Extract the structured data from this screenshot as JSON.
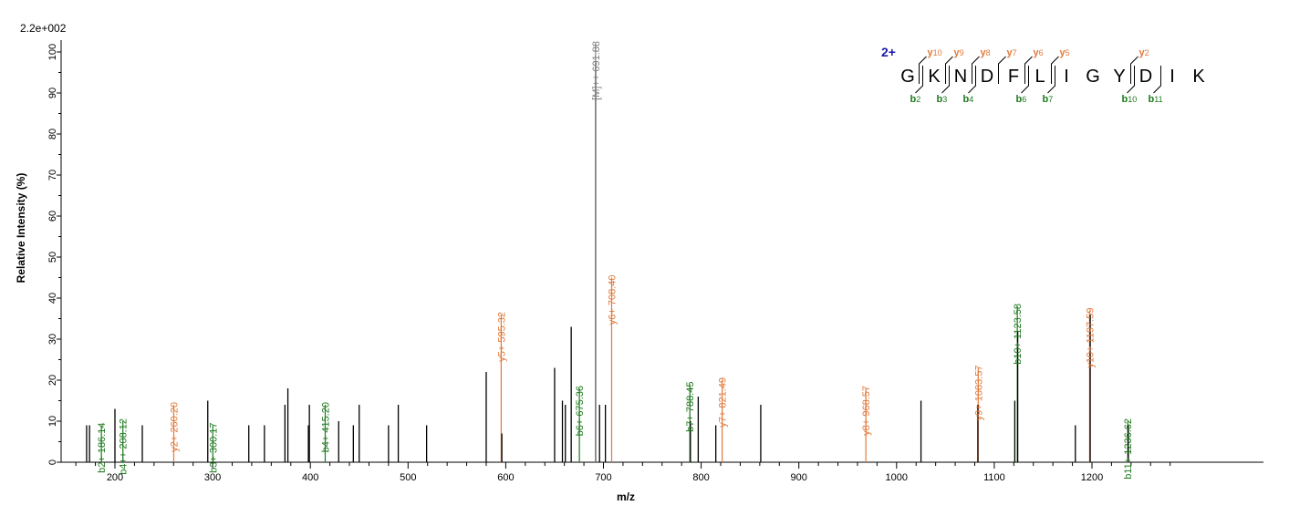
{
  "chart_data": {
    "type": "bar",
    "scale_label": "2.2e+002",
    "xlabel": "m/z",
    "ylabel": "Relative   Intensity (%)",
    "xlim": [
      155,
      1285
    ],
    "ylim": [
      0,
      101
    ],
    "xticks": [
      200,
      300,
      400,
      500,
      600,
      700,
      800,
      900,
      1000,
      1100,
      1200
    ],
    "yticks": [
      0,
      10,
      20,
      30,
      40,
      50,
      60,
      70,
      80,
      90,
      100
    ],
    "colors": {
      "other": "#000000",
      "b": "#1e7a1e",
      "y": "#e07a3c",
      "precursor": "#808080"
    },
    "peaks": [
      {
        "mz": 171,
        "intensity": 9,
        "type": "other"
      },
      {
        "mz": 174,
        "intensity": 9,
        "type": "other"
      },
      {
        "mz": 186.14,
        "intensity": 9,
        "type": "b",
        "label": "b2+ 186.14"
      },
      {
        "mz": 200,
        "intensity": 13,
        "type": "other"
      },
      {
        "mz": 208.12,
        "intensity": 10,
        "type": "b",
        "label": "b4++ 208.12"
      },
      {
        "mz": 228,
        "intensity": 9,
        "type": "other"
      },
      {
        "mz": 260.2,
        "intensity": 14,
        "type": "y",
        "label": "y2+ 260.20"
      },
      {
        "mz": 295,
        "intensity": 15,
        "type": "other"
      },
      {
        "mz": 300.17,
        "intensity": 9,
        "type": "b",
        "label": "b3+ 300.17"
      },
      {
        "mz": 337,
        "intensity": 9,
        "type": "other"
      },
      {
        "mz": 353,
        "intensity": 9,
        "type": "other"
      },
      {
        "mz": 374,
        "intensity": 14,
        "type": "other"
      },
      {
        "mz": 377,
        "intensity": 18,
        "type": "other"
      },
      {
        "mz": 398,
        "intensity": 9,
        "type": "other"
      },
      {
        "mz": 399,
        "intensity": 14,
        "type": "other"
      },
      {
        "mz": 415.2,
        "intensity": 14,
        "type": "b",
        "label": "b4+ 415.20"
      },
      {
        "mz": 429,
        "intensity": 10,
        "type": "other"
      },
      {
        "mz": 444,
        "intensity": 9,
        "type": "other"
      },
      {
        "mz": 450,
        "intensity": 14,
        "type": "other"
      },
      {
        "mz": 480,
        "intensity": 9,
        "type": "other"
      },
      {
        "mz": 490,
        "intensity": 14,
        "type": "other"
      },
      {
        "mz": 519,
        "intensity": 9,
        "type": "other"
      },
      {
        "mz": 580,
        "intensity": 22,
        "type": "other"
      },
      {
        "mz": 595.32,
        "intensity": 36,
        "type": "y",
        "label": "y5+ 595.32"
      },
      {
        "mz": 596,
        "intensity": 7,
        "type": "other"
      },
      {
        "mz": 650,
        "intensity": 23,
        "type": "other"
      },
      {
        "mz": 658,
        "intensity": 15,
        "type": "other"
      },
      {
        "mz": 661,
        "intensity": 14,
        "type": "other"
      },
      {
        "mz": 667,
        "intensity": 33,
        "type": "other"
      },
      {
        "mz": 675.36,
        "intensity": 18,
        "type": "b",
        "label": "b6+ 675.36"
      },
      {
        "mz": 692,
        "intensity": 97,
        "type": "other"
      },
      {
        "mz": 691.88,
        "intensity": 102,
        "type": "precursor",
        "label": "[M]++ 691.88"
      },
      {
        "mz": 696,
        "intensity": 14,
        "type": "other"
      },
      {
        "mz": 702,
        "intensity": 14,
        "type": "other"
      },
      {
        "mz": 708.4,
        "intensity": 45,
        "type": "y",
        "label": "y6+ 708.40"
      },
      {
        "mz": 788.45,
        "intensity": 19,
        "type": "b",
        "label": "b7+ 788.45"
      },
      {
        "mz": 789,
        "intensity": 10,
        "type": "other"
      },
      {
        "mz": 797,
        "intensity": 16,
        "type": "other"
      },
      {
        "mz": 815,
        "intensity": 9,
        "type": "other"
      },
      {
        "mz": 821.49,
        "intensity": 20,
        "type": "y",
        "label": "y7+ 821.49"
      },
      {
        "mz": 861,
        "intensity": 14,
        "type": "other"
      },
      {
        "mz": 968.57,
        "intensity": 18,
        "type": "y",
        "label": "y8+ 968.57"
      },
      {
        "mz": 1025,
        "intensity": 15,
        "type": "other"
      },
      {
        "mz": 1083.57,
        "intensity": 23,
        "type": "y",
        "label": "y9+ 1083.57"
      },
      {
        "mz": 1083.2,
        "intensity": 14,
        "type": "other"
      },
      {
        "mz": 1121,
        "intensity": 15,
        "type": "other"
      },
      {
        "mz": 1123.58,
        "intensity": 38,
        "type": "b",
        "label": "b10+ 1123.58"
      },
      {
        "mz": 1124,
        "intensity": 32,
        "type": "other"
      },
      {
        "mz": 1183,
        "intensity": 9,
        "type": "other"
      },
      {
        "mz": 1197.59,
        "intensity": 37,
        "type": "y",
        "label": "y10+ 1197.59"
      },
      {
        "mz": 1198.2,
        "intensity": 36,
        "type": "other"
      },
      {
        "mz": 1236.62,
        "intensity": 10,
        "type": "b",
        "label": "b11+ 1236.62"
      },
      {
        "mz": 1237.2,
        "intensity": 9,
        "type": "other"
      }
    ]
  },
  "sequence": {
    "charge": "2+",
    "residues": [
      "G",
      "K",
      "N",
      "D",
      "F",
      "L",
      "I",
      "G",
      "Y",
      "D",
      "I",
      "K"
    ],
    "y_ions": [
      {
        "after_index": 1,
        "main": "y",
        "sub": "10"
      },
      {
        "after_index": 2,
        "main": "y",
        "sub": "9"
      },
      {
        "after_index": 3,
        "main": "y",
        "sub": "8"
      },
      {
        "after_index": 4,
        "main": "y",
        "sub": "7"
      },
      {
        "after_index": 5,
        "main": "y",
        "sub": "6"
      },
      {
        "after_index": 6,
        "main": "y",
        "sub": "5"
      },
      {
        "after_index": 9,
        "main": "y",
        "sub": "2"
      }
    ],
    "b_ions": [
      {
        "after_index": 1,
        "main": "b",
        "sub": "2"
      },
      {
        "after_index": 2,
        "main": "b",
        "sub": "3"
      },
      {
        "after_index": 3,
        "main": "b",
        "sub": "4"
      },
      {
        "after_index": 5,
        "main": "b",
        "sub": "6"
      },
      {
        "after_index": 6,
        "main": "b",
        "sub": "7"
      },
      {
        "after_index": 9,
        "main": "b",
        "sub": "10"
      },
      {
        "after_index": 10,
        "main": "b",
        "sub": "11"
      }
    ]
  }
}
